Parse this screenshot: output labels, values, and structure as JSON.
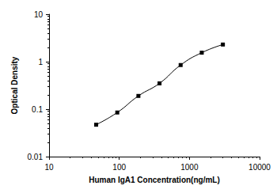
{
  "chart_data": {
    "type": "line",
    "x_label": "Human IgA1 Concentration(ng/mL)",
    "y_label": "Optical Density",
    "x": [
      46.875,
      93.75,
      187.5,
      375,
      750,
      1500,
      3000
    ],
    "values": [
      0.047,
      0.085,
      0.19,
      0.35,
      0.85,
      1.55,
      2.3
    ],
    "xlim": [
      10,
      10000
    ],
    "xticks": [
      10,
      100,
      1000,
      10000
    ],
    "ylim": [
      0.01,
      10
    ],
    "yticks": [
      0.01,
      0.1,
      1,
      10
    ],
    "log": true,
    "grid": false,
    "color": "#000000",
    "marker": "square",
    "line_style": "solid"
  }
}
